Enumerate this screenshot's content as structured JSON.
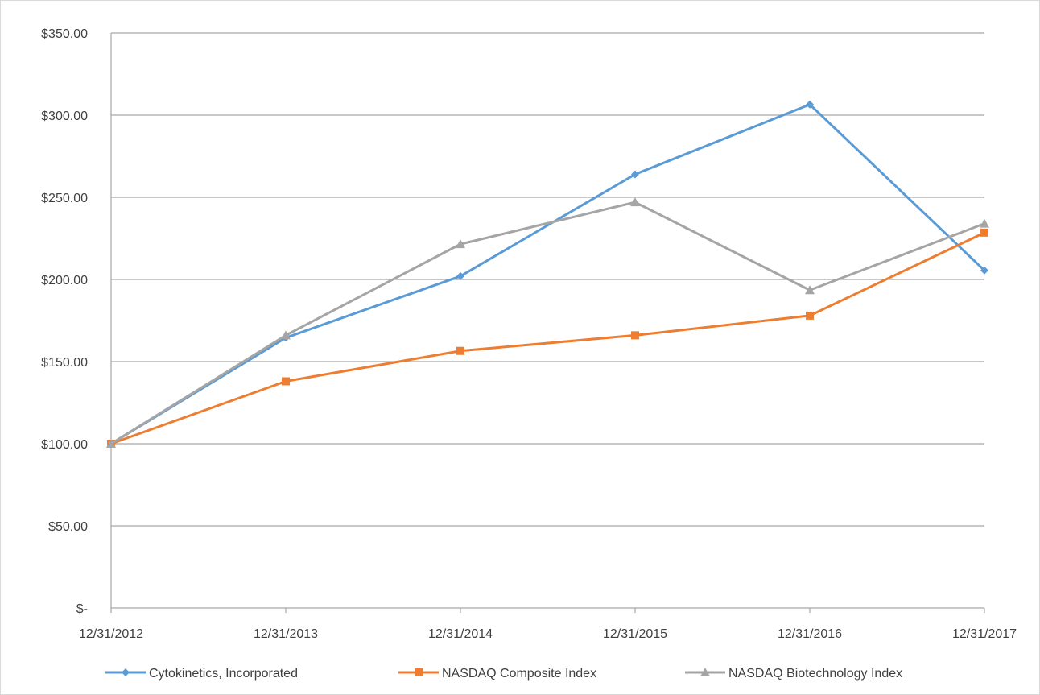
{
  "chart_data": {
    "type": "line",
    "title": "",
    "xlabel": "",
    "ylabel": "",
    "x": [
      "12/31/2012",
      "12/31/2013",
      "12/31/2014",
      "12/31/2015",
      "12/31/2016",
      "12/31/2017"
    ],
    "ylim": [
      0,
      350
    ],
    "y_ticks": [
      0,
      50,
      100,
      150,
      200,
      250,
      300,
      350
    ],
    "y_tick_labels": [
      "$-",
      "$50.00",
      "$100.00",
      "$150.00",
      "$200.00",
      "$250.00",
      "$300.00",
      "$350.00"
    ],
    "grid": true,
    "legend_position": "bottom",
    "series": [
      {
        "name": "Cytokinetics, Incorporated",
        "color": "#5b9bd5",
        "marker": "diamond",
        "values": [
          100,
          164.5,
          202,
          264,
          306.5,
          205.5
        ]
      },
      {
        "name": "NASDAQ Composite Index",
        "color": "#ed7d31",
        "marker": "square",
        "values": [
          100,
          138,
          156.5,
          166,
          178,
          228.5
        ]
      },
      {
        "name": "NASDAQ Biotechnology Index",
        "color": "#a5a5a5",
        "marker": "triangle",
        "values": [
          100,
          166,
          221.5,
          247,
          193.5,
          234
        ]
      }
    ]
  }
}
